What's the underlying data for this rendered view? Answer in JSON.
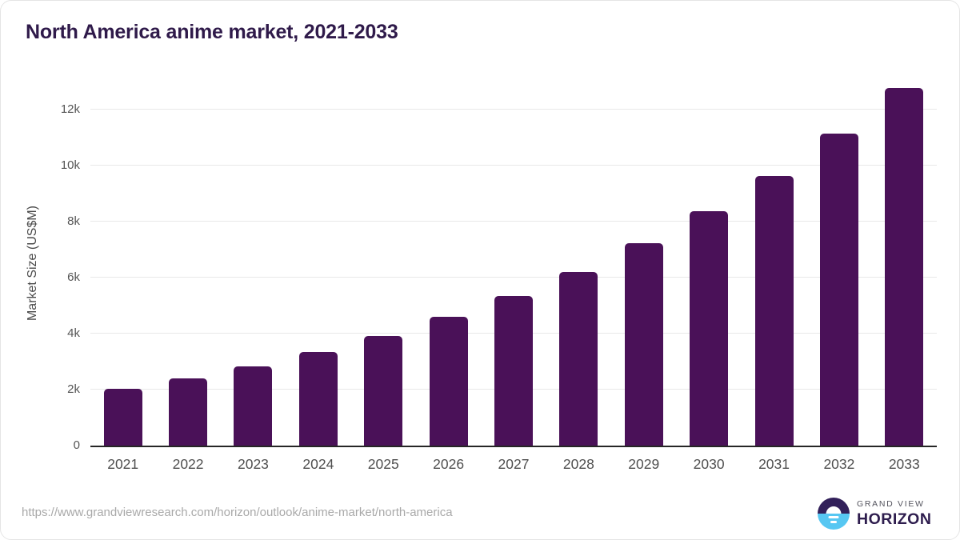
{
  "header": {
    "title": "North America anime market, 2021-2033"
  },
  "chart_data": {
    "type": "bar",
    "title": "North America anime market, 2021-2033",
    "ylabel": "Market Size (US$M)",
    "xlabel": "",
    "units": "US$M",
    "categories": [
      "2021",
      "2022",
      "2023",
      "2024",
      "2025",
      "2026",
      "2027",
      "2028",
      "2029",
      "2030",
      "2031",
      "2032",
      "2033"
    ],
    "values": [
      2030,
      2400,
      2830,
      3330,
      3910,
      4600,
      5330,
      6190,
      7240,
      8370,
      9630,
      11140,
      12770
    ],
    "yticks": {
      "values": [
        0,
        2000,
        4000,
        6000,
        8000,
        10000,
        12000
      ],
      "labels": [
        "0",
        "2k",
        "4k",
        "6k",
        "8k",
        "10k",
        "12k"
      ]
    },
    "ylim": [
      0,
      13100
    ],
    "grid": "horizontal",
    "legend": "none",
    "bar_color": "#4a1158"
  },
  "footer": {
    "source_url": "https://www.grandviewresearch.com/horizon/outlook/anime-market/north-america",
    "logo": {
      "top_text": "GRAND VIEW",
      "bottom_text": "HORIZON"
    }
  },
  "colors": {
    "title": "#2f1a4a",
    "bar": "#4a1158",
    "gridline": "#e9e9e9",
    "axis_line": "#262626",
    "tick_text": "#555555",
    "url_text": "#a9a9a9",
    "logo_dark": "#32205a",
    "logo_blue": "#57c7f2",
    "brand_top_text": "#54545e",
    "brand_bottom_text": "#2e1d4e"
  }
}
